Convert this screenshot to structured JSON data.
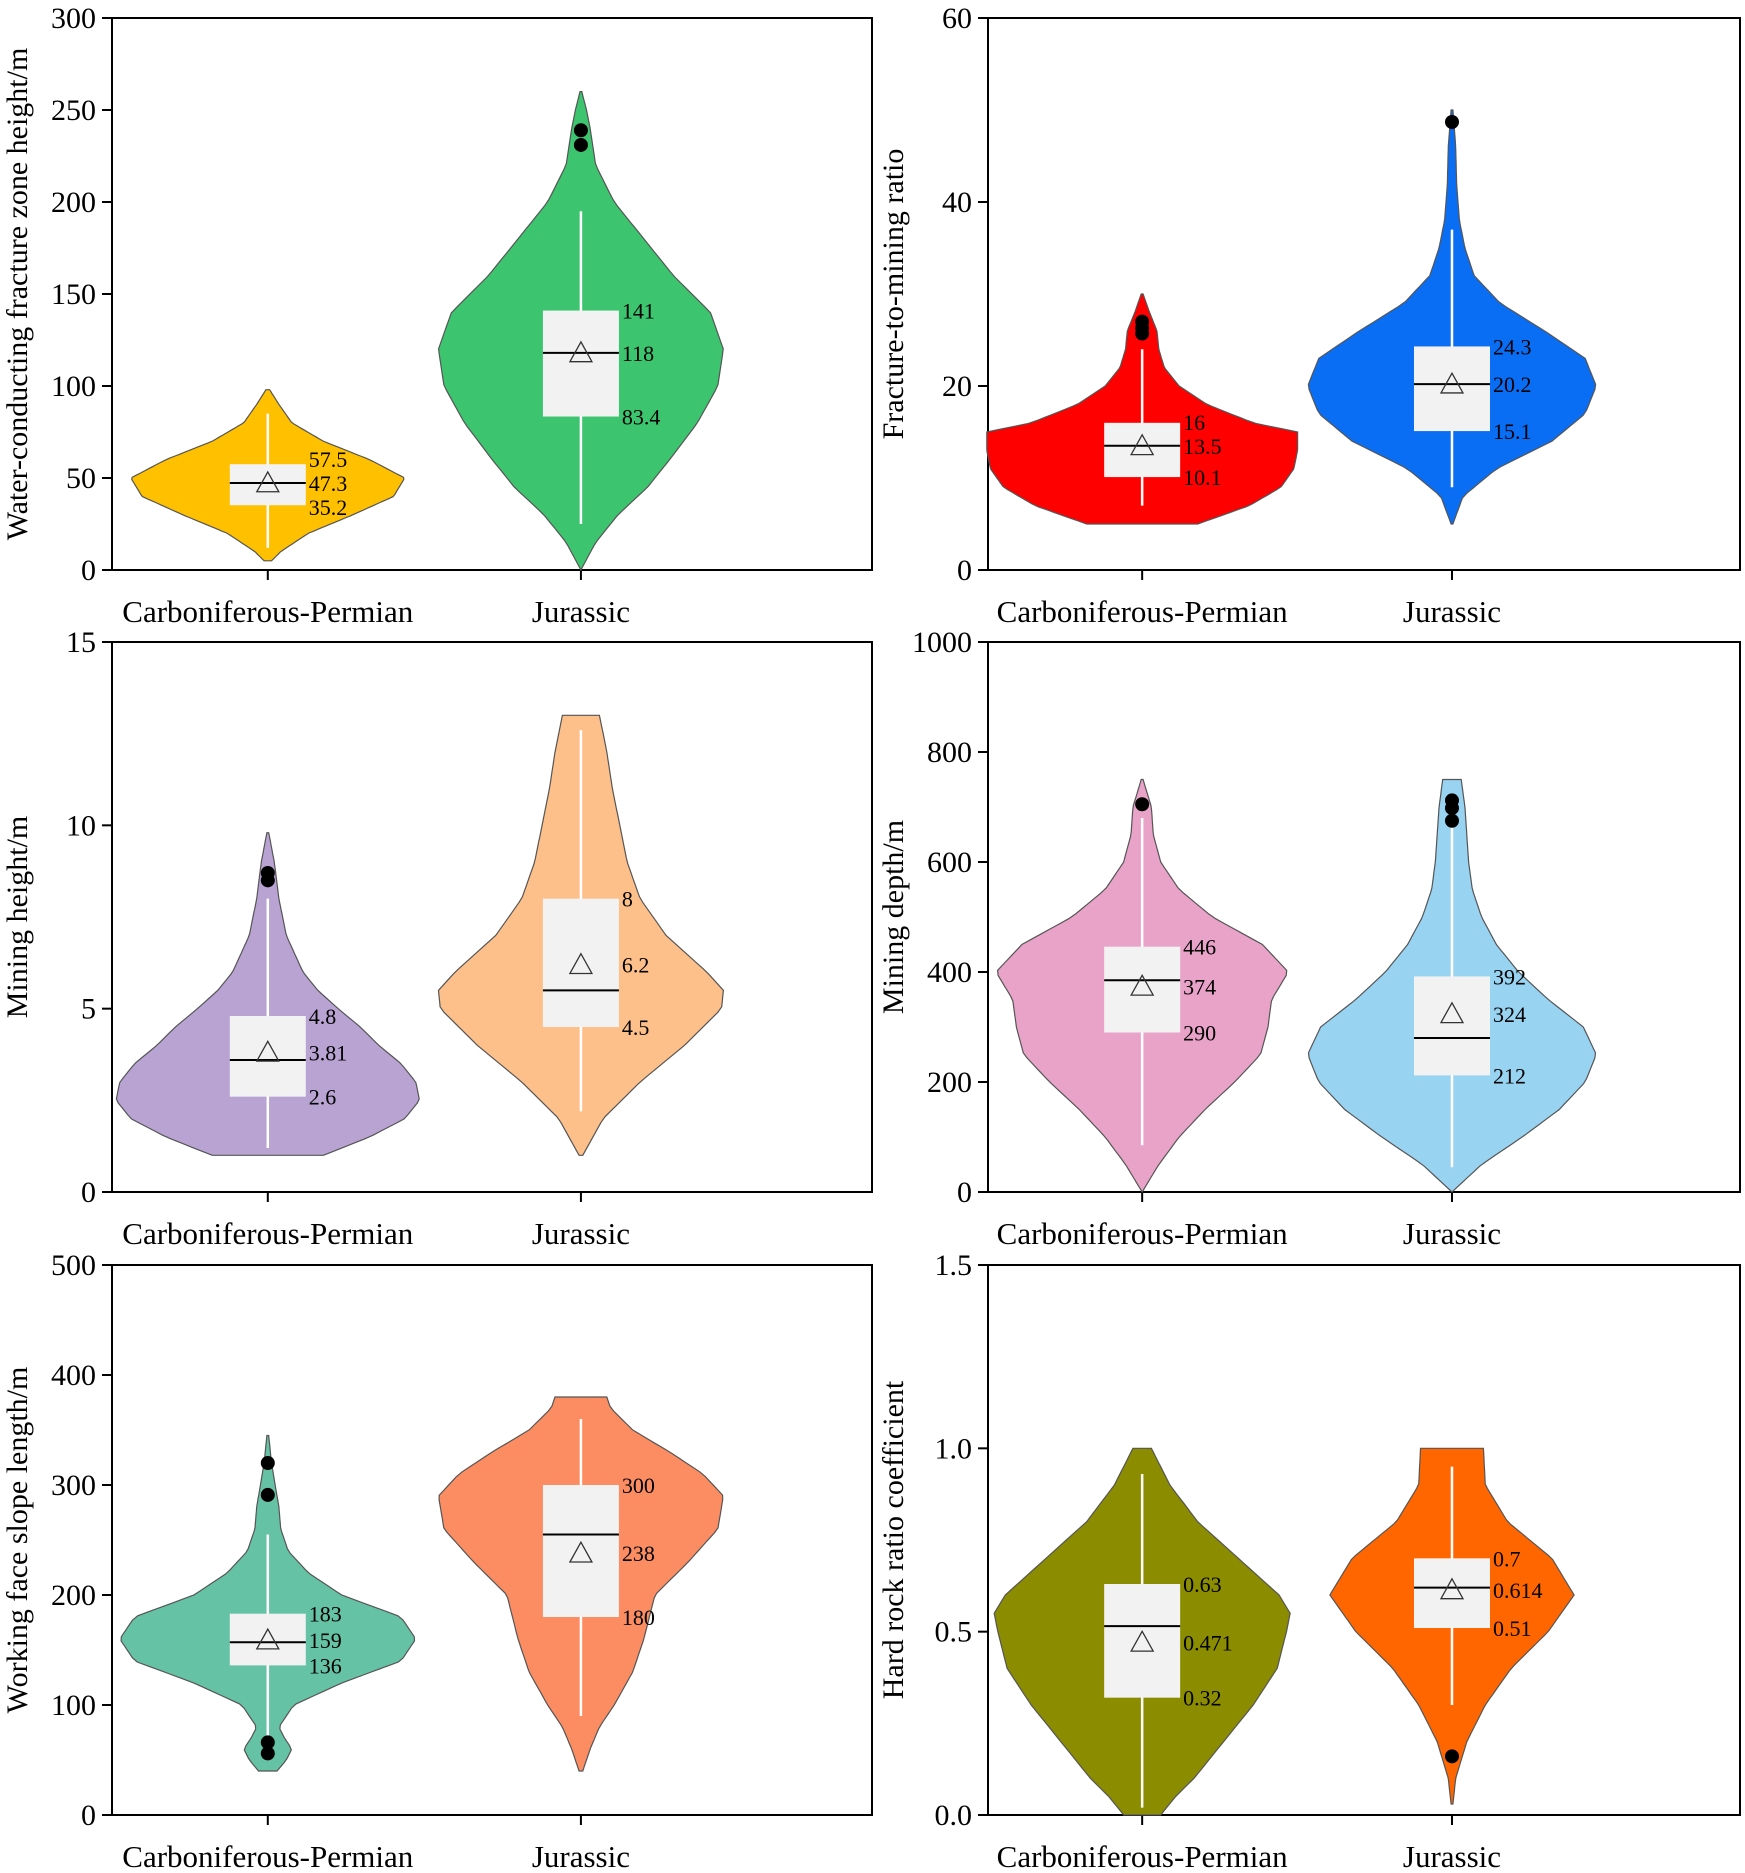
{
  "chart_data": [
    {
      "type": "violin",
      "ylabel": "Water-conducting fracture zone height/m",
      "ylim": [
        0,
        300
      ],
      "yticks": [
        0,
        50,
        100,
        150,
        200,
        250,
        300
      ],
      "categories": [
        "Carboniferous-Permian",
        "Jurassic"
      ],
      "groups": [
        {
          "name": "Carboniferous-Permian",
          "color": "#FFC000",
          "range": [
            5,
            98
          ],
          "whisker": [
            12,
            85
          ],
          "q1": 35.2,
          "q3": 57.5,
          "median": 47.3,
          "mean": 47.3,
          "labels": [
            "57.5",
            "47.3",
            "35.2"
          ],
          "outliers": [],
          "profile": [
            [
              5,
              0.02
            ],
            [
              10,
              0.07
            ],
            [
              20,
              0.22
            ],
            [
              30,
              0.46
            ],
            [
              40,
              0.68
            ],
            [
              50,
              0.74
            ],
            [
              60,
              0.55
            ],
            [
              70,
              0.3
            ],
            [
              80,
              0.13
            ],
            [
              90,
              0.06
            ],
            [
              98,
              0.01
            ]
          ]
        },
        {
          "name": "Jurassic",
          "color": "#3DC46F",
          "range": [
            0,
            260
          ],
          "whisker": [
            25,
            195
          ],
          "q1": 83.4,
          "q3": 141,
          "median": 118,
          "mean": 118,
          "labels": [
            "141",
            "118",
            "83.4"
          ],
          "outliers": [
            231,
            239
          ],
          "profile": [
            [
              0,
              0
            ],
            [
              15,
              0.08
            ],
            [
              30,
              0.2
            ],
            [
              45,
              0.36
            ],
            [
              60,
              0.48
            ],
            [
              80,
              0.63
            ],
            [
              100,
              0.74
            ],
            [
              120,
              0.77
            ],
            [
              140,
              0.7
            ],
            [
              160,
              0.5
            ],
            [
              180,
              0.34
            ],
            [
              200,
              0.18
            ],
            [
              220,
              0.08
            ],
            [
              240,
              0.05
            ],
            [
              250,
              0.03
            ],
            [
              260,
              0.005
            ]
          ]
        }
      ]
    },
    {
      "type": "violin",
      "ylabel": "Fracture-to-mining ratio",
      "ylim": [
        0,
        60
      ],
      "yticks": [
        0,
        20,
        40,
        60
      ],
      "categories": [
        "Carboniferous-Permian",
        "Jurassic"
      ],
      "groups": [
        {
          "name": "Carboniferous-Permian",
          "color": "#FF0000",
          "range": [
            5,
            30
          ],
          "whisker": [
            7,
            24
          ],
          "q1": 10.1,
          "q3": 16,
          "median": 13.5,
          "mean": 13.5,
          "labels": [
            "16",
            "13.5",
            "10.1"
          ],
          "outliers": [
            25.7,
            26.3,
            27
          ],
          "profile": [
            [
              5,
              0.3
            ],
            [
              7,
              0.58
            ],
            [
              9,
              0.75
            ],
            [
              11,
              0.82
            ],
            [
              13,
              0.84
            ],
            [
              15,
              0.84
            ],
            [
              16,
              0.6
            ],
            [
              18,
              0.35
            ],
            [
              20,
              0.2
            ],
            [
              22,
              0.12
            ],
            [
              24,
              0.09
            ],
            [
              26,
              0.08
            ],
            [
              28,
              0.04
            ],
            [
              30,
              0.005
            ]
          ]
        },
        {
          "name": "Jurassic",
          "color": "#0A6EF5",
          "range": [
            5,
            50
          ],
          "whisker": [
            9,
            37
          ],
          "q1": 15.1,
          "q3": 24.3,
          "median": 20.2,
          "mean": 20.2,
          "labels": [
            "24.3",
            "20.2",
            "15.1"
          ],
          "outliers": [
            48.7
          ],
          "profile": [
            [
              5,
              0.005
            ],
            [
              8,
              0.06
            ],
            [
              11,
              0.24
            ],
            [
              14,
              0.54
            ],
            [
              17,
              0.72
            ],
            [
              20,
              0.78
            ],
            [
              23,
              0.72
            ],
            [
              26,
              0.5
            ],
            [
              29,
              0.26
            ],
            [
              32,
              0.12
            ],
            [
              35,
              0.07
            ],
            [
              38,
              0.04
            ],
            [
              42,
              0.025
            ],
            [
              46,
              0.02
            ],
            [
              50,
              0.005
            ]
          ]
        }
      ]
    },
    {
      "type": "violin",
      "ylabel": "Mining height/m",
      "ylim": [
        0,
        15
      ],
      "yticks": [
        0,
        5,
        10,
        15
      ],
      "categories": [
        "Carboniferous-Permian",
        "Jurassic"
      ],
      "groups": [
        {
          "name": "Carboniferous-Permian",
          "color": "#B8A3D3",
          "range": [
            1,
            9.8
          ],
          "whisker": [
            1.2,
            8
          ],
          "q1": 2.6,
          "q3": 4.8,
          "median": 3.6,
          "mean": 3.81,
          "labels": [
            "4.8",
            "3.81",
            "2.6"
          ],
          "outliers": [
            8.5,
            8.7
          ],
          "profile": [
            [
              1,
              0.3
            ],
            [
              1.5,
              0.55
            ],
            [
              2,
              0.74
            ],
            [
              2.5,
              0.82
            ],
            [
              3,
              0.8
            ],
            [
              3.5,
              0.72
            ],
            [
              4,
              0.6
            ],
            [
              4.5,
              0.5
            ],
            [
              5,
              0.38
            ],
            [
              5.5,
              0.27
            ],
            [
              6,
              0.19
            ],
            [
              7,
              0.1
            ],
            [
              8,
              0.06
            ],
            [
              9,
              0.035
            ],
            [
              9.8,
              0.005
            ]
          ]
        },
        {
          "name": "Jurassic",
          "color": "#FDC08A",
          "range": [
            1,
            13
          ],
          "whisker": [
            2.2,
            12.6
          ],
          "q1": 4.5,
          "q3": 8,
          "median": 5.5,
          "mean": 6.2,
          "labels": [
            "8",
            "6.2",
            "4.5"
          ],
          "outliers": [],
          "profile": [
            [
              1,
              0.01
            ],
            [
              2,
              0.12
            ],
            [
              3,
              0.32
            ],
            [
              4,
              0.56
            ],
            [
              5,
              0.76
            ],
            [
              5.5,
              0.77
            ],
            [
              6,
              0.68
            ],
            [
              7,
              0.46
            ],
            [
              8,
              0.32
            ],
            [
              9,
              0.25
            ],
            [
              10,
              0.21
            ],
            [
              11,
              0.17
            ],
            [
              12,
              0.14
            ],
            [
              13,
              0.1
            ]
          ]
        }
      ]
    },
    {
      "type": "violin",
      "ylabel": "Mining depth/m",
      "ylim": [
        0,
        1000
      ],
      "yticks": [
        0,
        200,
        400,
        600,
        800,
        1000
      ],
      "categories": [
        "Carboniferous-Permian",
        "Jurassic"
      ],
      "groups": [
        {
          "name": "Carboniferous-Permian",
          "color": "#E9A3C9",
          "range": [
            0,
            750
          ],
          "whisker": [
            85,
            680
          ],
          "q1": 290,
          "q3": 446,
          "median": 385,
          "mean": 374,
          "labels": [
            "446",
            "374",
            "290"
          ],
          "outliers": [
            705
          ],
          "profile": [
            [
              0,
              0
            ],
            [
              50,
              0.09
            ],
            [
              100,
              0.2
            ],
            [
              150,
              0.34
            ],
            [
              200,
              0.5
            ],
            [
              250,
              0.64
            ],
            [
              300,
              0.68
            ],
            [
              350,
              0.7
            ],
            [
              400,
              0.79
            ],
            [
              450,
              0.65
            ],
            [
              500,
              0.38
            ],
            [
              550,
              0.2
            ],
            [
              600,
              0.1
            ],
            [
              650,
              0.06
            ],
            [
              700,
              0.05
            ],
            [
              750,
              0.005
            ]
          ]
        },
        {
          "name": "Jurassic",
          "color": "#98D3F1",
          "range": [
            0,
            750
          ],
          "whisker": [
            45,
            670
          ],
          "q1": 212,
          "q3": 392,
          "median": 280,
          "mean": 324,
          "labels": [
            "392",
            "324",
            "212"
          ],
          "outliers": [
            675,
            698,
            712
          ],
          "profile": [
            [
              0,
              0
            ],
            [
              50,
              0.16
            ],
            [
              100,
              0.38
            ],
            [
              150,
              0.58
            ],
            [
              200,
              0.72
            ],
            [
              250,
              0.78
            ],
            [
              300,
              0.71
            ],
            [
              350,
              0.52
            ],
            [
              400,
              0.36
            ],
            [
              450,
              0.24
            ],
            [
              500,
              0.16
            ],
            [
              550,
              0.11
            ],
            [
              600,
              0.09
            ],
            [
              650,
              0.08
            ],
            [
              700,
              0.07
            ],
            [
              750,
              0.05
            ]
          ]
        }
      ]
    },
    {
      "type": "violin",
      "ylabel": "Working face slope length/m",
      "ylim": [
        0,
        500
      ],
      "yticks": [
        0,
        100,
        200,
        300,
        400,
        500
      ],
      "categories": [
        "Carboniferous-Permian",
        "Jurassic"
      ],
      "groups": [
        {
          "name": "Carboniferous-Permian",
          "color": "#66C2A5",
          "range": [
            40,
            345
          ],
          "whisker": [
            70,
            255
          ],
          "q1": 136,
          "q3": 183,
          "median": 157,
          "mean": 159,
          "labels": [
            "183",
            "159",
            "136"
          ],
          "outliers": [
            56,
            66,
            291,
            320
          ],
          "profile": [
            [
              40,
              0.05
            ],
            [
              50,
              0.1
            ],
            [
              60,
              0.13
            ],
            [
              70,
              0.09
            ],
            [
              80,
              0.06
            ],
            [
              100,
              0.14
            ],
            [
              120,
              0.4
            ],
            [
              140,
              0.72
            ],
            [
              160,
              0.8
            ],
            [
              180,
              0.72
            ],
            [
              200,
              0.4
            ],
            [
              220,
              0.22
            ],
            [
              240,
              0.11
            ],
            [
              260,
              0.07
            ],
            [
              280,
              0.06
            ],
            [
              300,
              0.04
            ],
            [
              320,
              0.02
            ],
            [
              345,
              0.005
            ]
          ]
        },
        {
          "name": "Jurassic",
          "color": "#FC8D62",
          "range": [
            40,
            380
          ],
          "whisker": [
            90,
            360
          ],
          "q1": 180,
          "q3": 300,
          "median": 255,
          "mean": 238,
          "labels": [
            "300",
            "238",
            "180"
          ],
          "outliers": [],
          "profile": [
            [
              40,
              0.01
            ],
            [
              60,
              0.05
            ],
            [
              80,
              0.1
            ],
            [
              100,
              0.18
            ],
            [
              130,
              0.28
            ],
            [
              160,
              0.34
            ],
            [
              200,
              0.4
            ],
            [
              230,
              0.58
            ],
            [
              260,
              0.74
            ],
            [
              290,
              0.77
            ],
            [
              310,
              0.66
            ],
            [
              330,
              0.48
            ],
            [
              350,
              0.28
            ],
            [
              370,
              0.16
            ],
            [
              380,
              0.14
            ]
          ]
        }
      ]
    },
    {
      "type": "violin",
      "ylabel": "Hard rock ratio coefficient",
      "ylim": [
        0,
        1.5
      ],
      "yticks": [
        "0.0",
        "0.5",
        "1.0",
        "1.5"
      ],
      "categories": [
        "Carboniferous-Permian",
        "Jurassic"
      ],
      "groups": [
        {
          "name": "Carboniferous-Permian",
          "color": "#8B8C00",
          "range": [
            0,
            1
          ],
          "whisker": [
            0.02,
            0.93
          ],
          "q1": 0.32,
          "q3": 0.63,
          "median": 0.515,
          "mean": 0.471,
          "labels": [
            "0.63",
            "0.471",
            "0.32"
          ],
          "outliers": [],
          "profile": [
            [
              0,
              0.1
            ],
            [
              0.05,
              0.18
            ],
            [
              0.1,
              0.28
            ],
            [
              0.2,
              0.44
            ],
            [
              0.3,
              0.6
            ],
            [
              0.4,
              0.73
            ],
            [
              0.5,
              0.78
            ],
            [
              0.55,
              0.8
            ],
            [
              0.6,
              0.74
            ],
            [
              0.7,
              0.52
            ],
            [
              0.8,
              0.3
            ],
            [
              0.9,
              0.15
            ],
            [
              1.0,
              0.05
            ]
          ]
        },
        {
          "name": "Jurassic",
          "color": "#FF6600",
          "range": [
            0.03,
            1
          ],
          "whisker": [
            0.3,
            0.95
          ],
          "q1": 0.51,
          "q3": 0.7,
          "median": 0.62,
          "mean": 0.614,
          "labels": [
            "0.7",
            "0.614",
            "0.51"
          ],
          "outliers": [
            0.16
          ],
          "profile": [
            [
              0.03,
              0.005
            ],
            [
              0.1,
              0.02
            ],
            [
              0.15,
              0.05
            ],
            [
              0.2,
              0.08
            ],
            [
              0.3,
              0.18
            ],
            [
              0.4,
              0.32
            ],
            [
              0.5,
              0.52
            ],
            [
              0.6,
              0.66
            ],
            [
              0.7,
              0.54
            ],
            [
              0.8,
              0.3
            ],
            [
              0.9,
              0.18
            ],
            [
              1.0,
              0.17
            ]
          ]
        }
      ]
    }
  ]
}
